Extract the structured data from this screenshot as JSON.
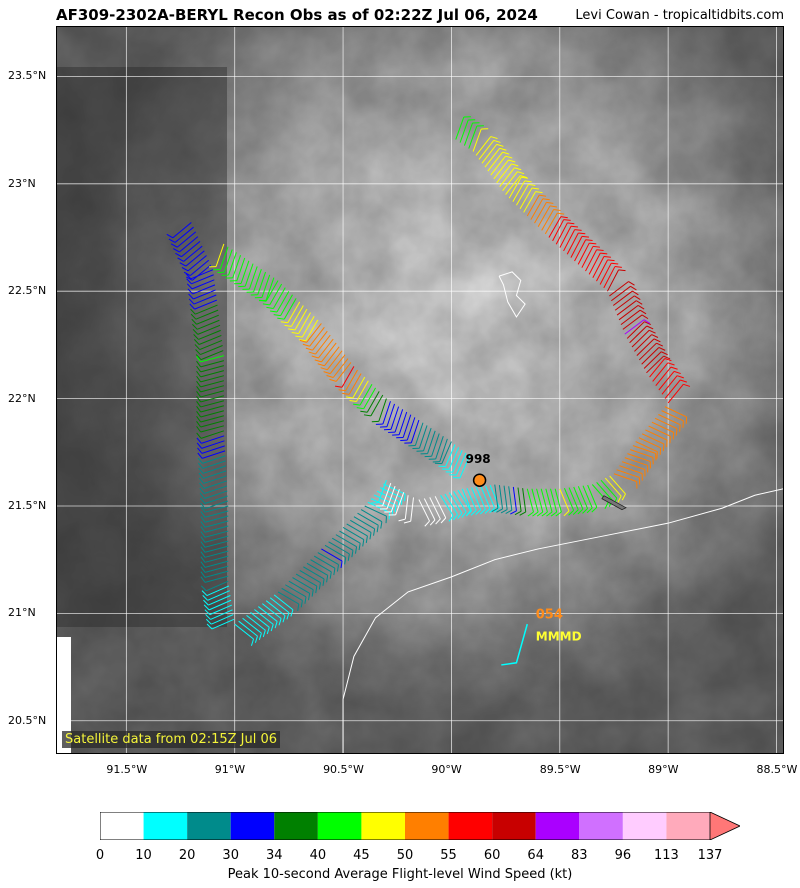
{
  "header": {
    "title": "AF309-2302A-BERYL Recon Obs as of 02:22Z Jul 06, 2024",
    "credit": "Levi Cowan - tropicaltidbits.com"
  },
  "map": {
    "lon_ticks": [
      "91.5°W",
      "91°W",
      "90.5°W",
      "90°W",
      "89.5°W",
      "89°W",
      "88.5°W"
    ],
    "lat_ticks": [
      "23.5°N",
      "23°N",
      "22.5°N",
      "22°N",
      "21.5°N",
      "21°N",
      "20.5°N"
    ],
    "lon_range": [
      -91.82,
      -88.47
    ],
    "lat_range": [
      20.35,
      23.73
    ],
    "satellite_note": "Satellite data from 02:15Z Jul 06",
    "center_fix": {
      "label": "998",
      "lon": -89.87,
      "lat": 21.62,
      "color": "#ff8c1a"
    },
    "dropsonde": {
      "value": "054",
      "flag": "MMMD",
      "value_color": "#ff8c1a",
      "flag_color": "#ffff33",
      "lon": -89.62,
      "lat": 20.94
    },
    "flight_track": [
      {
        "lon": -91.2,
        "lat": 22.82,
        "kt": 30
      },
      {
        "lon": -91.1,
        "lat": 22.6,
        "kt": 30
      },
      {
        "lon": -91.05,
        "lat": 22.2,
        "kt": 40
      },
      {
        "lon": -91.05,
        "lat": 21.85,
        "kt": 34
      },
      {
        "lon": -91.03,
        "lat": 21.5,
        "kt": 20
      },
      {
        "lon": -91.03,
        "lat": 21.15,
        "kt": 20
      },
      {
        "lon": -91.0,
        "lat": 20.95,
        "kt": 10
      },
      {
        "lon": -90.8,
        "lat": 21.1,
        "kt": 20
      },
      {
        "lon": -90.6,
        "lat": 21.3,
        "kt": 30
      },
      {
        "lon": -90.4,
        "lat": 21.5,
        "kt": 20
      },
      {
        "lon": -90.3,
        "lat": 21.62,
        "kt": 10
      },
      {
        "lon": -90.2,
        "lat": 21.55,
        "kt": 0
      },
      {
        "lon": -90.15,
        "lat": 21.53,
        "kt": 0
      },
      {
        "lon": -90.05,
        "lat": 21.55,
        "kt": 10
      },
      {
        "lon": -89.95,
        "lat": 21.58,
        "kt": 10
      },
      {
        "lon": -89.8,
        "lat": 21.6,
        "kt": 20
      },
      {
        "lon": -89.65,
        "lat": 21.58,
        "kt": 40
      },
      {
        "lon": -89.5,
        "lat": 21.58,
        "kt": 45
      },
      {
        "lon": -89.35,
        "lat": 21.6,
        "kt": 40
      },
      {
        "lon": -89.25,
        "lat": 21.65,
        "kt": 50
      },
      {
        "lon": -89.15,
        "lat": 21.8,
        "kt": 50
      },
      {
        "lon": -89.0,
        "lat": 21.98,
        "kt": 55
      },
      {
        "lon": -89.1,
        "lat": 22.12,
        "kt": 60
      },
      {
        "lon": -89.2,
        "lat": 22.3,
        "kt": 64
      },
      {
        "lon": -89.28,
        "lat": 22.5,
        "kt": 60
      },
      {
        "lon": -89.55,
        "lat": 22.75,
        "kt": 55
      },
      {
        "lon": -89.75,
        "lat": 22.95,
        "kt": 45
      },
      {
        "lon": -89.9,
        "lat": 23.15,
        "kt": 45
      },
      {
        "lon": -90.0,
        "lat": 23.22,
        "kt": 40
      }
    ],
    "inner_track": [
      {
        "lon": -91.05,
        "lat": 22.72,
        "kt": 45
      },
      {
        "lon": -90.8,
        "lat": 22.55,
        "kt": 40
      },
      {
        "lon": -90.6,
        "lat": 22.35,
        "kt": 50
      },
      {
        "lon": -90.45,
        "lat": 22.15,
        "kt": 55
      },
      {
        "lon": -90.3,
        "lat": 22.0,
        "kt": 34
      },
      {
        "lon": -90.15,
        "lat": 21.9,
        "kt": 30
      },
      {
        "lon": -90.0,
        "lat": 21.8,
        "kt": 20
      },
      {
        "lon": -89.9,
        "lat": 21.72,
        "kt": 10
      }
    ],
    "sonde_track": [
      {
        "lon": -89.65,
        "lat": 20.95
      },
      {
        "lon": -89.7,
        "lat": 20.77
      },
      {
        "lon": -89.77,
        "lat": 20.76
      }
    ]
  },
  "colorbar": {
    "label": "Peak 10-second Average Flight-level Wind Speed (kt)",
    "ticks": [
      "0",
      "10",
      "20",
      "30",
      "34",
      "40",
      "45",
      "50",
      "55",
      "60",
      "64",
      "83",
      "96",
      "113",
      "137"
    ],
    "colors": [
      "#ffffff",
      "#00ffff",
      "#008b8b",
      "#0000ff",
      "#008000",
      "#00ff00",
      "#ffff00",
      "#ff7f00",
      "#ff0000",
      "#c80000",
      "#aa00ff",
      "#d070ff",
      "#ffccff",
      "#ffaabb"
    ],
    "extend_color": "#ff7777"
  }
}
